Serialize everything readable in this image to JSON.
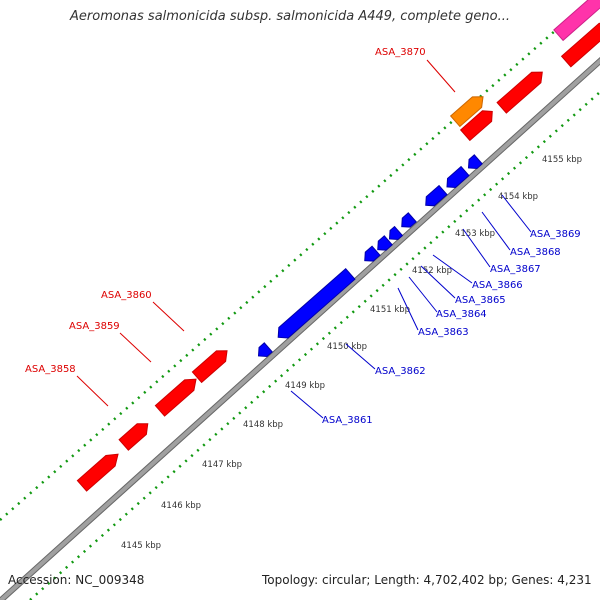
{
  "title": "Aeromonas salmonicida subsp. salmonicida A449, complete geno...",
  "accession": "Accession: NC_009348",
  "summary": "Topology: circular; Length: 4,702,402 bp; Genes: 4,231",
  "colors": {
    "backbone": "#999999",
    "forward_gene": "#ff0000",
    "reverse_gene": "#0000ff",
    "highlight_gene": "#ff8800",
    "other_gene": "#ff33aa",
    "tick": "#009900",
    "forward_label": "#dd0000",
    "reverse_label": "#0000cc"
  },
  "scale_labels": [
    "4145 kbp",
    "4146 kbp",
    "4147 kbp",
    "4148 kbp",
    "4149 kbp",
    "4150 kbp",
    "4151 kbp",
    "4152 kbp",
    "4153 kbp",
    "4154 kbp",
    "4155 kbp"
  ],
  "forward_gene_labels": [
    "ASA_3858",
    "ASA_3859",
    "ASA_3860",
    "ASA_3870"
  ],
  "reverse_gene_labels": [
    "ASA_3861",
    "ASA_3862",
    "ASA_3863",
    "ASA_3864",
    "ASA_3865",
    "ASA_3866",
    "ASA_3867",
    "ASA_3868",
    "ASA_3869"
  ]
}
